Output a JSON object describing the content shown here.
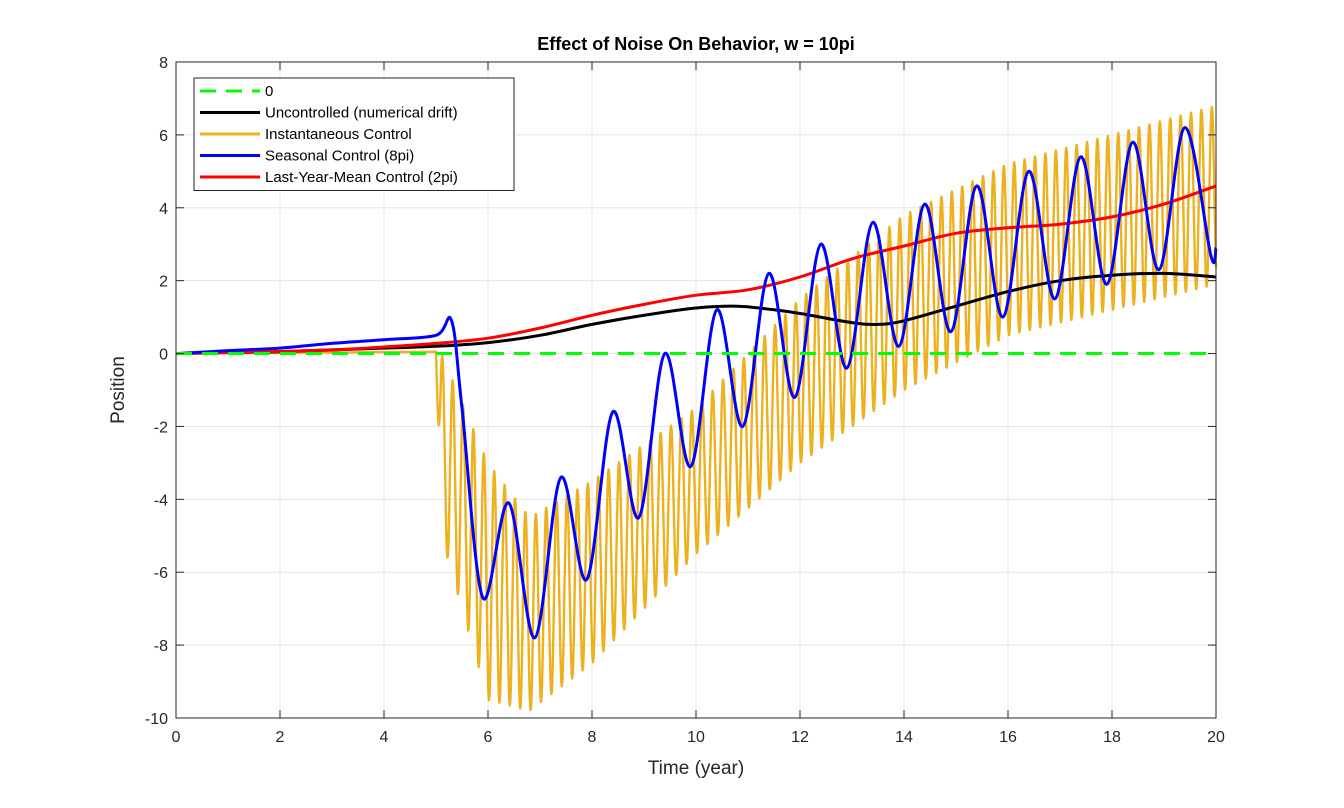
{
  "chart_data": {
    "type": "line",
    "title": "Effect of Noise On Behavior, w = 10pi",
    "xlabel": "Time (year)",
    "ylabel": "Position",
    "xlim": [
      0,
      20
    ],
    "ylim": [
      -10,
      8
    ],
    "xticks": [
      0,
      2,
      4,
      6,
      8,
      10,
      12,
      14,
      16,
      18,
      20
    ],
    "yticks": [
      -10,
      -8,
      -6,
      -4,
      -2,
      0,
      2,
      4,
      6,
      8
    ],
    "xtick_labels": [
      "0",
      "2",
      "4",
      "6",
      "8",
      "10",
      "12",
      "14",
      "16",
      "18",
      "20"
    ],
    "ytick_labels": [
      "-10",
      "-8",
      "-6",
      "-4",
      "-2",
      "0",
      "2",
      "4",
      "6",
      "8"
    ],
    "grid": true,
    "legend_position": "top-left",
    "series": [
      {
        "name": "0",
        "color": "#00ff00",
        "dash": "dashed",
        "x": [
          0,
          20
        ],
        "y": [
          0,
          0
        ]
      },
      {
        "name": "Uncontrolled (numerical drift)",
        "color": "#000000",
        "x": [
          0,
          1,
          2,
          3,
          4,
          5,
          6,
          7,
          8,
          9,
          10,
          10.8,
          11.5,
          12,
          13,
          13.5,
          14,
          15,
          16,
          17,
          18,
          19,
          20
        ],
        "y": [
          0,
          0.03,
          0.05,
          0.1,
          0.15,
          0.2,
          0.3,
          0.5,
          0.8,
          1.05,
          1.25,
          1.3,
          1.2,
          1.1,
          0.85,
          0.8,
          0.9,
          1.3,
          1.7,
          2.0,
          2.15,
          2.2,
          2.1
        ]
      },
      {
        "name": "Instantaneous Control",
        "color": "#edb120",
        "envelope_x": [
          0,
          5,
          5.1,
          6,
          6.8,
          8,
          10,
          12,
          14,
          16,
          18,
          20
        ],
        "envelope_upper": [
          0,
          0.05,
          0,
          -3,
          -4.5,
          -3.5,
          -1.5,
          1.5,
          3.8,
          5.2,
          6.0,
          6.8
        ],
        "envelope_lower": [
          0,
          0.05,
          -5,
          -9.5,
          -9.8,
          -8.5,
          -5.5,
          -3.0,
          -1.0,
          0.5,
          1.2,
          1.9
        ],
        "oscillation_period": 0.2
      },
      {
        "name": "Seasonal Control (8pi)",
        "color": "#0000ff",
        "x": [
          0,
          1,
          2,
          3,
          4,
          5,
          5.3,
          5.5,
          5.9,
          6.4,
          6.9,
          7.4,
          7.9,
          8.4,
          8.9,
          9.4,
          9.9,
          10.4,
          10.9,
          11.4,
          11.9,
          12.4,
          12.9,
          13.4,
          13.9,
          14.4,
          14.9,
          15.4,
          15.9,
          16.4,
          16.9,
          17.4,
          17.9,
          18.4,
          18.9,
          19.4,
          19.9,
          20
        ],
        "y": [
          0,
          0.08,
          0.15,
          0.28,
          0.38,
          0.5,
          0.9,
          -1.5,
          -6.7,
          -4.1,
          -7.8,
          -3.4,
          -6.2,
          -1.6,
          -4.5,
          0,
          -3.1,
          1.2,
          -2.0,
          2.2,
          -1.2,
          3.0,
          -0.4,
          3.6,
          0.2,
          4.1,
          0.6,
          4.6,
          1.0,
          5.0,
          1.5,
          5.4,
          1.9,
          5.8,
          2.3,
          6.2,
          2.7,
          2.9
        ]
      },
      {
        "name": "Last-Year-Mean Control (2pi)",
        "color": "#ff0000",
        "x": [
          0,
          1,
          2,
          3,
          4,
          5,
          6,
          7,
          8,
          9,
          10,
          11,
          12,
          13,
          14,
          15,
          16,
          17,
          18,
          19,
          20
        ],
        "y": [
          0,
          0.03,
          0.06,
          0.1,
          0.18,
          0.28,
          0.42,
          0.7,
          1.05,
          1.35,
          1.6,
          1.75,
          2.1,
          2.6,
          2.95,
          3.3,
          3.45,
          3.55,
          3.75,
          4.1,
          4.6
        ]
      }
    ]
  }
}
